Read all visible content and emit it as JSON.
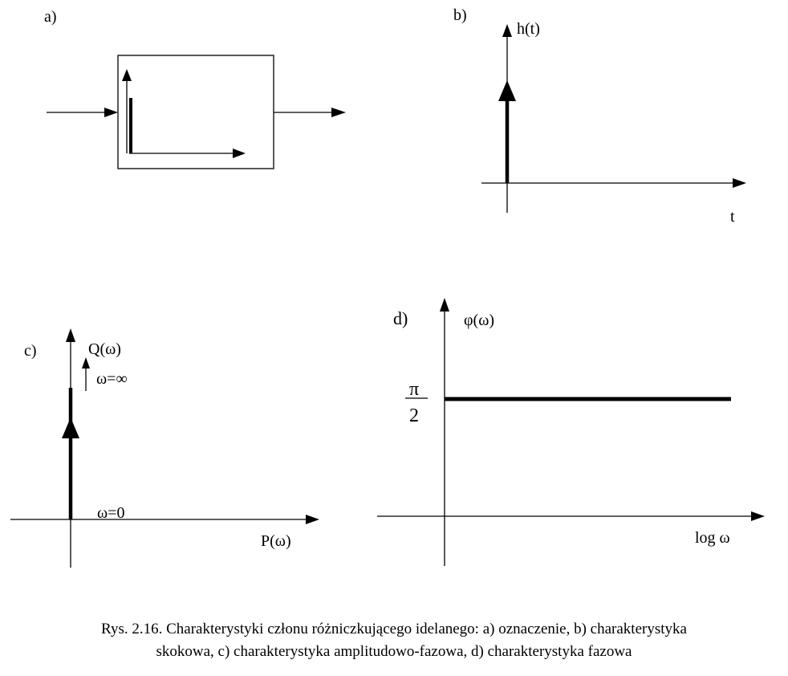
{
  "panel_a": {
    "label": "a)"
  },
  "panel_b": {
    "label": "b)",
    "y_axis": "h(t)",
    "x_axis": "t"
  },
  "panel_c": {
    "label": "c)",
    "y_axis": "Q(ω)",
    "x_axis": "P(ω)",
    "top_note": "ω=∞",
    "bottom_note": "ω=0"
  },
  "panel_d": {
    "label": "d)",
    "y_axis": "φ(ω)",
    "x_axis": "log ω",
    "level_numerator": "π",
    "level_denominator": "2"
  },
  "caption": {
    "line1": "Rys. 2.16. Charakterystyki członu różniczkującego idelanego: a) oznaczenie, b) charakterystyka",
    "line2": "skokowa, c) charakterystyka amplitudowo-fazowa, d) charakterystyka fazowa"
  }
}
